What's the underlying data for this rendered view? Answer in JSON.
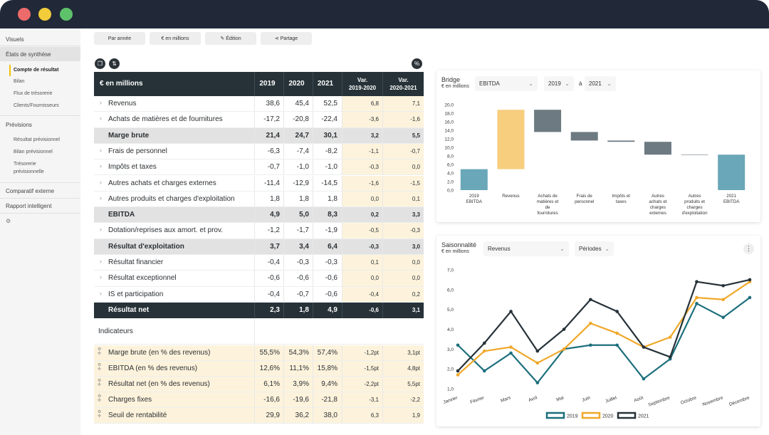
{
  "toolbar": {
    "by_year": "Par année",
    "in_millions": "€ en millions",
    "edition": "Édition",
    "share": "Partage"
  },
  "sidebar": {
    "visuels": "Visuels",
    "etats": "États de synthèse",
    "compte": "Compte de résultat",
    "bilan": "Bilan",
    "flux": "Flux de trésorerie",
    "clients": "Clients/Fournisseurs",
    "previsions": "Prévisions",
    "res_prev": "Résultat prévisionnel",
    "bilan_prev": "Bilan prévisionnel",
    "treso_prev_1": "Trésorerie",
    "treso_prev_2": "prévisionnelle",
    "comparatif": "Comparatif externe",
    "rapport": "Rapport intelligent"
  },
  "table": {
    "header": {
      "label": "€ en millions",
      "y1": "2019",
      "y2": "2020",
      "y3": "2021",
      "v1a": "Var.",
      "v1b": "2019-2020",
      "v2a": "Var.",
      "v2b": "2020-2021"
    },
    "rows": [
      {
        "label": "Revenus",
        "v": [
          "38,6",
          "45,4",
          "52,5",
          "6,8",
          "7,1"
        ]
      },
      {
        "label": "Achats de matières et de fournitures",
        "v": [
          "-17,2",
          "-20,8",
          "-22,4",
          "-3,6",
          "-1,6"
        ]
      },
      {
        "label": "Marge brute",
        "v": [
          "21,4",
          "24,7",
          "30,1",
          "3,2",
          "5,5"
        ]
      },
      {
        "label": "Frais de personnel",
        "v": [
          "-6,3",
          "-7,4",
          "-8,2",
          "-1,1",
          "-0,7"
        ]
      },
      {
        "label": "Impôts et taxes",
        "v": [
          "-0,7",
          "-1,0",
          "-1,0",
          "-0,3",
          "0,0"
        ]
      },
      {
        "label": "Autres achats et charges externes",
        "v": [
          "-11,4",
          "-12,9",
          "-14,5",
          "-1,6",
          "-1,5"
        ]
      },
      {
        "label": "Autres produits et charges d'exploitation",
        "v": [
          "1,8",
          "1,8",
          "1,8",
          "0,0",
          "0,1"
        ]
      },
      {
        "label": "EBITDA",
        "v": [
          "4,9",
          "5,0",
          "8,3",
          "0,2",
          "3,3"
        ]
      },
      {
        "label": "Dotation/reprises aux amort. et prov.",
        "v": [
          "-1,2",
          "-1,7",
          "-1,9",
          "-0,5",
          "-0,3"
        ]
      },
      {
        "label": "Résultat d'exploitation",
        "v": [
          "3,7",
          "3,4",
          "6,4",
          "-0,3",
          "3,0"
        ]
      },
      {
        "label": "Résultat financier",
        "v": [
          "-0,4",
          "-0,3",
          "-0,3",
          "0,1",
          "0,0"
        ]
      },
      {
        "label": "Résultat exceptionnel",
        "v": [
          "-0,6",
          "-0,6",
          "-0,6",
          "0,0",
          "0,0"
        ]
      },
      {
        "label": "IS et participation",
        "v": [
          "-0,4",
          "-0,7",
          "-0,6",
          "-0,4",
          "0,2"
        ]
      },
      {
        "label": "Résultat net",
        "v": [
          "2,3",
          "1,8",
          "4,9",
          "-0,6",
          "3,1"
        ]
      }
    ],
    "indicators_title": "Indicateurs",
    "indicators": [
      {
        "label": "Marge brute (en % des revenus)",
        "v": [
          "55,5%",
          "54,3%",
          "57,4%",
          "-1,2pt",
          "3,1pt"
        ]
      },
      {
        "label": "EBITDA (en % des revenus)",
        "v": [
          "12,6%",
          "11,1%",
          "15,8%",
          "-1,5pt",
          "4,8pt"
        ]
      },
      {
        "label": "Résultat net (en % des revenus)",
        "v": [
          "6,1%",
          "3,9%",
          "9,4%",
          "-2,2pt",
          "5,5pt"
        ]
      },
      {
        "label": "Charges fixes",
        "v": [
          "-16,6",
          "-19,6",
          "-21,8",
          "-3,1",
          "-2,2"
        ]
      },
      {
        "label": "Seuil de rentabilité",
        "v": [
          "29,9",
          "36,2",
          "38,0",
          "6,3",
          "1,9"
        ]
      }
    ]
  },
  "bridge": {
    "title": "Bridge",
    "subtitle": "€ en millions",
    "metric": "EBITDA",
    "from": "2019",
    "to_label": "à",
    "to": "2021"
  },
  "season": {
    "title": "Saisonnalité",
    "subtitle": "€ en millions",
    "metric": "Revenus",
    "period": "Périodes"
  },
  "chart_data": [
    {
      "type": "bar",
      "title": "Bridge",
      "subtitle": "€ en millions",
      "chart_kind": "waterfall",
      "categories": [
        "2019 EBITDA",
        "Revenus",
        "Achats de matières et de fournitures",
        "Frais de personnel",
        "Impôts et taxes",
        "Autres achats et charges externes",
        "Autres produits et charges d'exploitation",
        "2021 EBITDA"
      ],
      "ranges": [
        [
          0,
          4.9
        ],
        [
          4.9,
          18.8
        ],
        [
          13.6,
          18.8
        ],
        [
          11.6,
          13.6
        ],
        [
          11.3,
          11.6
        ],
        [
          8.3,
          11.3
        ],
        [
          8.3,
          8.3
        ],
        [
          0,
          8.3
        ]
      ],
      "colors": [
        "#6aa7b8",
        "#f7cd7e",
        "#6d7a82",
        "#6d7a82",
        "#6d7a82",
        "#6d7a82",
        "#6d7a82",
        "#6aa7b8"
      ],
      "yticks": [
        "0,0",
        "2,0",
        "4,0",
        "6,0",
        "8,0",
        "10,0",
        "12,0",
        "14,0",
        "16,0",
        "18,0",
        "20,0"
      ],
      "ylim": [
        0,
        20
      ]
    },
    {
      "type": "line",
      "title": "Saisonnalité",
      "subtitle": "€ en millions",
      "categories": [
        "Janvier",
        "Février",
        "Mars",
        "Avril",
        "Mai",
        "Juin",
        "Juillet",
        "Août",
        "Septembre",
        "Octobre",
        "Novembre",
        "Décembre"
      ],
      "series": [
        {
          "name": "2019",
          "color": "#1d6f7d",
          "values": [
            3.2,
            1.9,
            2.8,
            1.3,
            3.0,
            3.2,
            3.2,
            1.5,
            2.5,
            5.3,
            4.6,
            5.6
          ]
        },
        {
          "name": "2020",
          "color": "#f0a82a",
          "values": [
            1.7,
            2.9,
            3.1,
            2.3,
            3.0,
            4.3,
            3.8,
            3.1,
            3.6,
            5.6,
            5.5,
            6.4
          ]
        },
        {
          "name": "2021",
          "color": "#263238",
          "values": [
            1.9,
            3.3,
            4.9,
            2.9,
            4.0,
            5.5,
            4.9,
            3.1,
            2.6,
            6.4,
            6.2,
            6.5
          ]
        }
      ],
      "yticks": [
        "1,0",
        "2,0",
        "3,0",
        "4,0",
        "5,0",
        "6,0",
        "7,0"
      ],
      "ylim": [
        1,
        7
      ]
    }
  ]
}
